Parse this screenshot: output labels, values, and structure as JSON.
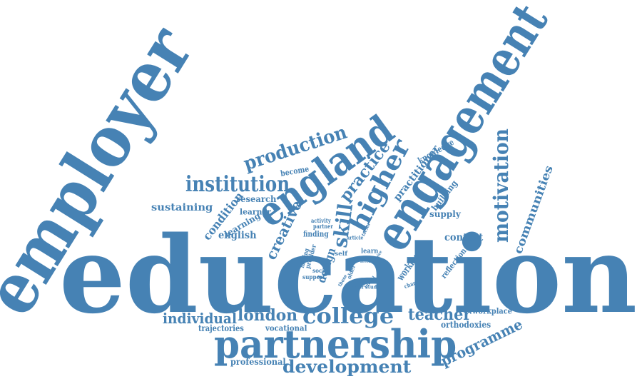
{
  "accent_color": "#4682b4",
  "words": [
    {
      "id": "education",
      "text": "education"
    },
    {
      "id": "employer",
      "text": "employer"
    },
    {
      "id": "engagement",
      "text": "engagement"
    },
    {
      "id": "england",
      "text": "england"
    },
    {
      "id": "partnership",
      "text": "partnership"
    },
    {
      "id": "college",
      "text": "college"
    },
    {
      "id": "development",
      "text": "development"
    },
    {
      "id": "institution",
      "text": "institution"
    },
    {
      "id": "production",
      "text": "production"
    },
    {
      "id": "higher",
      "text": "higher"
    },
    {
      "id": "motivation",
      "text": "motivation"
    },
    {
      "id": "london",
      "text": "london"
    },
    {
      "id": "individual",
      "text": "individual"
    },
    {
      "id": "teacher",
      "text": "teacher"
    },
    {
      "id": "programme",
      "text": "programme"
    },
    {
      "id": "practice",
      "text": "practice"
    },
    {
      "id": "skill",
      "text": "skill"
    },
    {
      "id": "creative",
      "text": "creative"
    },
    {
      "id": "communities",
      "text": "communities"
    },
    {
      "id": "practitioner",
      "text": "practitioner"
    },
    {
      "id": "sustaining",
      "text": "sustaining"
    },
    {
      "id": "condition",
      "text": "condition"
    },
    {
      "id": "english",
      "text": "english"
    },
    {
      "id": "research",
      "text": "research"
    },
    {
      "id": "learning",
      "text": "learning"
    },
    {
      "id": "learner",
      "text": "learner"
    },
    {
      "id": "become",
      "text": "become"
    },
    {
      "id": "knowledge",
      "text": "knowledge"
    },
    {
      "id": "building",
      "text": "building"
    },
    {
      "id": "supply",
      "text": "supply"
    },
    {
      "id": "context",
      "text": "context"
    },
    {
      "id": "design",
      "text": "design"
    },
    {
      "id": "working",
      "text": "working"
    },
    {
      "id": "reflection",
      "text": "reflection"
    },
    {
      "id": "workplace",
      "text": "workplace"
    },
    {
      "id": "orthodoxies",
      "text": "orthodoxies"
    },
    {
      "id": "trajectories",
      "text": "trajectories"
    },
    {
      "id": "vocational",
      "text": "vocational"
    },
    {
      "id": "professional",
      "text": "professional"
    },
    {
      "id": "activity",
      "text": "activity"
    },
    {
      "id": "partner",
      "text": "partner"
    },
    {
      "id": "finding",
      "text": "finding"
    },
    {
      "id": "making",
      "text": "making"
    },
    {
      "id": "provider",
      "text": "provider"
    },
    {
      "id": "social",
      "text": "social"
    },
    {
      "id": "support",
      "text": "support"
    },
    {
      "id": "self",
      "text": "self"
    },
    {
      "id": "older",
      "text": "older"
    },
    {
      "id": "sector",
      "text": "sector"
    },
    {
      "id": "study",
      "text": "study"
    },
    {
      "id": "learn",
      "text": "learn"
    },
    {
      "id": "change",
      "text": "change"
    },
    {
      "id": "article",
      "text": "article"
    },
    {
      "id": "factor",
      "text": "factor"
    },
    {
      "id": "initial",
      "text": "initial"
    },
    {
      "id": "level",
      "text": "level"
    },
    {
      "id": "those",
      "text": "those"
    },
    {
      "id": "give",
      "text": "give"
    },
    {
      "id": "face",
      "text": "face"
    }
  ]
}
